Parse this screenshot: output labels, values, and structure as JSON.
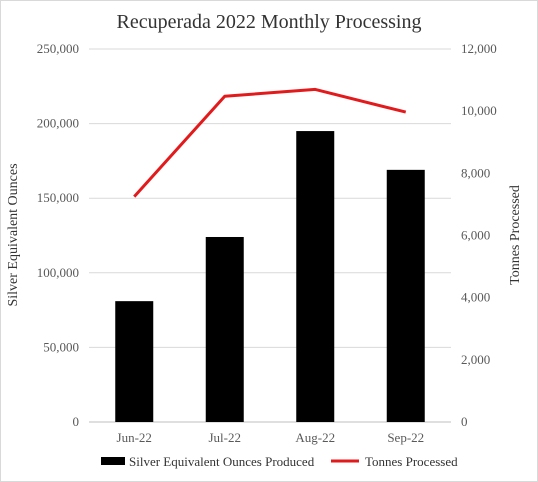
{
  "chart_data": {
    "type": "bar",
    "title": "Recuperada 2022 Monthly Processing",
    "categories": [
      "Jun-22",
      "Jul-22",
      "Aug-22",
      "Sep-22"
    ],
    "series": [
      {
        "name": "Silver Equivalent Ounces Produced",
        "type": "bar",
        "axis": "left",
        "color": "#000000",
        "values": [
          81000,
          124000,
          195000,
          169000
        ]
      },
      {
        "name": "Tonnes Processed",
        "type": "line",
        "axis": "right",
        "color": "#e31a1c",
        "values": [
          7250,
          10480,
          10700,
          9970
        ]
      }
    ],
    "ylabel": "Silver Equivalent Ounces",
    "y2label": "Tonnes Processed",
    "ylim": [
      0,
      250000
    ],
    "y2lim": [
      0,
      12000
    ],
    "yticks": [
      "0",
      "50,000",
      "100,000",
      "150,000",
      "200,000",
      "250,000"
    ],
    "y2ticks": [
      "0",
      "2,000",
      "4,000",
      "6,000",
      "8,000",
      "10,000",
      "12,000"
    ],
    "grid": true,
    "legend": "bottom"
  }
}
